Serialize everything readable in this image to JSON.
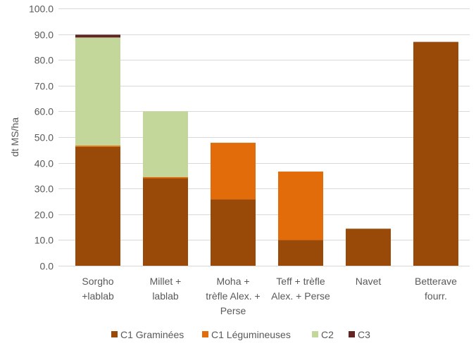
{
  "chart_data": {
    "type": "bar",
    "stacked": true,
    "title": "",
    "xlabel": "",
    "ylabel": "dt MS/ha",
    "ylim": [
      0,
      100
    ],
    "yticks": [
      "0.0",
      "10.0",
      "20.0",
      "30.0",
      "40.0",
      "50.0",
      "60.0",
      "70.0",
      "80.0",
      "90.0",
      "100.0"
    ],
    "grid": true,
    "legend_position": "bottom",
    "categories": [
      [
        "Sorgho",
        "+lablab"
      ],
      [
        "Millet +",
        "lablab"
      ],
      [
        "Moha +",
        "trèfle Alex. +",
        "Perse"
      ],
      [
        "Teff + trèfle",
        "Alex. + Perse"
      ],
      [
        "Navet"
      ],
      [
        "Betterave",
        "fourr."
      ]
    ],
    "series": [
      {
        "name": "C1 Graminées",
        "color": "#9A4A08",
        "values": [
          46.2,
          34.0,
          25.8,
          10.0,
          14.4,
          87.0
        ]
      },
      {
        "name": "C1 Légumineuses",
        "color": "#E36C0A",
        "values": [
          0.5,
          0.5,
          22.0,
          26.6,
          0,
          0
        ]
      },
      {
        "name": "C2",
        "color": "#C4D79B",
        "values": [
          42.0,
          25.5,
          0,
          0,
          0,
          0
        ]
      },
      {
        "name": "C3",
        "color": "#632523",
        "values": [
          1.1,
          0,
          0,
          0,
          0,
          0
        ]
      }
    ]
  }
}
